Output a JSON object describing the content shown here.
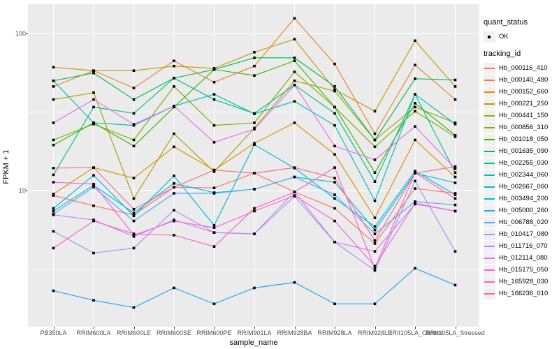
{
  "chart_data": {
    "type": "line",
    "title": "",
    "xlabel": "sample_name",
    "ylabel": "FPKM + 1",
    "y_scale": "log10",
    "ylim": [
      1.36,
      154
    ],
    "y_major_ticks": [
      10,
      100
    ],
    "y_minor_ticks": [
      3.162,
      31.62
    ],
    "grid": "white-on-gray",
    "legend_position": "right",
    "categories": [
      "PB350LA",
      "RRIM600LA",
      "RRIM600LE",
      "RRIM600SE",
      "RRIM600PE",
      "RRIM901LA",
      "RRIM928BA",
      "RRIM928LA",
      "RRIM928LE",
      "RRII105LA_Control",
      "RRII105LA_Stressed"
    ],
    "series": [
      {
        "name": "Hb_000116_410",
        "color": "#F8766D",
        "values": [
          9.3,
          8.0,
          7.0,
          10.5,
          10.4,
          12.9,
          9.8,
          7.7,
          4.6,
          10.3,
          9.6
        ]
      },
      {
        "name": "Hb_000140_480",
        "color": "#EA8331",
        "values": [
          46,
          58,
          45,
          67,
          49,
          62,
          125,
          64,
          23,
          63,
          38
        ]
      },
      {
        "name": "Hb_000152_660",
        "color": "#D89000",
        "values": [
          9.5,
          14,
          12,
          19,
          13.5,
          20,
          27,
          17,
          6.7,
          21,
          12.2
        ]
      },
      {
        "name": "Hb_000221_250",
        "color": "#C09B00",
        "values": [
          61,
          58,
          58,
          62,
          60,
          76,
          92,
          44,
          32,
          90,
          46
        ]
      },
      {
        "name": "Hb_000441_150",
        "color": "#A3A500",
        "values": [
          38,
          42,
          8.9,
          23,
          13.2,
          25,
          50,
          43,
          21,
          34,
          27
        ]
      },
      {
        "name": "Hb_000856_310",
        "color": "#7CAE00",
        "values": [
          21,
          26.5,
          21,
          46,
          26,
          27,
          57,
          34,
          19,
          32,
          22
        ]
      },
      {
        "name": "Hb_001018_050",
        "color": "#39B600",
        "values": [
          19.5,
          27,
          19.2,
          34,
          59,
          54,
          67,
          34,
          13,
          36,
          22.5
        ]
      },
      {
        "name": "Hb_001635_090",
        "color": "#00BB4E",
        "values": [
          50,
          56,
          38,
          52,
          59,
          70,
          70,
          46,
          21,
          51.5,
          50.6
        ]
      },
      {
        "name": "Hb_002255_030",
        "color": "#00C087",
        "values": [
          12.6,
          34,
          31,
          52,
          38,
          31,
          47,
          31,
          11.4,
          41,
          13
        ]
      },
      {
        "name": "Hb_002344_060",
        "color": "#00C0B2",
        "values": [
          50,
          27,
          26,
          34.5,
          41,
          30.8,
          37,
          26,
          8.6,
          41,
          26.5
        ]
      },
      {
        "name": "Hb_002667_060",
        "color": "#00BCD6",
        "values": [
          7.4,
          10.8,
          7.2,
          11.1,
          9.7,
          10.2,
          12.2,
          11.3,
          5.6,
          12.9,
          11.2
        ]
      },
      {
        "name": "Hb_003494_200",
        "color": "#00B8E3",
        "values": [
          7.7,
          12.5,
          6.9,
          12.4,
          6.0,
          19.6,
          13.9,
          8.9,
          5.9,
          13.3,
          9.4
        ]
      },
      {
        "name": "Hb_005000_260",
        "color": "#23A5F0",
        "values": [
          2.3,
          2.0,
          1.8,
          2.4,
          1.9,
          2.4,
          2.6,
          1.9,
          1.9,
          3.2,
          2.5
        ]
      },
      {
        "name": "Hb_006788_020",
        "color": "#58A6FF",
        "values": [
          7.1,
          10.5,
          6.4,
          9.6,
          9.6,
          10.2,
          12.2,
          9.4,
          5.3,
          8.5,
          8.1
        ]
      },
      {
        "name": "Hb_010417_080",
        "color": "#A393F5",
        "values": [
          5.5,
          4.0,
          4.3,
          7.5,
          5.4,
          5.3,
          9.2,
          4.7,
          3.1,
          11.5,
          4.1
        ]
      },
      {
        "name": "Hb_011716_070",
        "color": "#C77CFF",
        "values": [
          7.0,
          6.5,
          5.1,
          6.5,
          5.4,
          5.3,
          9.8,
          4.7,
          4.1,
          8.2,
          7.4
        ]
      },
      {
        "name": "Hb_012114_080",
        "color": "#E76BF3",
        "values": [
          27,
          38,
          26.4,
          34.5,
          20.3,
          24.6,
          47,
          19.2,
          15.7,
          25.6,
          13.8
        ]
      },
      {
        "name": "Hb_015175_050",
        "color": "#FA62DB",
        "values": [
          11.3,
          11.0,
          5.2,
          6.4,
          5.8,
          7.4,
          9.3,
          6.4,
          3.3,
          8.3,
          7.4
        ]
      },
      {
        "name": "Hb_165928_030",
        "color": "#FF62B6",
        "values": [
          4.3,
          6.4,
          5.3,
          5.2,
          4.4,
          7.7,
          9.8,
          14,
          3.2,
          13,
          8.9
        ]
      },
      {
        "name": "Hb_166236_010",
        "color": "#FB6B8E",
        "values": [
          13.9,
          14,
          7.6,
          10.5,
          13.5,
          12.9,
          14,
          12,
          4.8,
          12.9,
          14.2
        ]
      }
    ]
  },
  "axes": {
    "x_title": "sample_name",
    "y_title": "FPKM + 1",
    "y_tick_labels": [
      "100",
      "10"
    ]
  },
  "legend": {
    "quant_status_title": "quant_status",
    "quant_status_entries": [
      {
        "label": "OK",
        "marker": "point"
      }
    ],
    "tracking_id_title": "tracking_id"
  },
  "style_colors": {
    "panel_background": "#EBEBEB",
    "grid": "#FFFFFF",
    "tick_text": "#4D4D4D",
    "point": "#000000",
    "legend_key_background": "#F0F0F0"
  }
}
